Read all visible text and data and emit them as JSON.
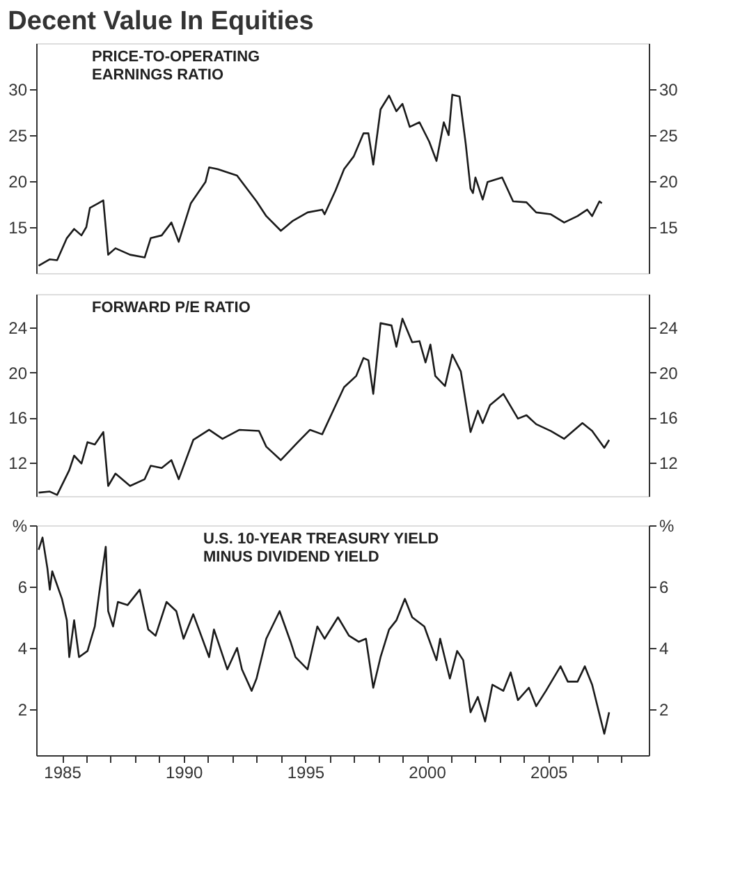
{
  "chart_data": [
    {
      "type": "line",
      "title": "Decent Value In Equities",
      "subtitle": "PRICE-TO-OPERATING\nEARNINGS RATIO",
      "xlim": [
        1983.94,
        2009.13
      ],
      "ylim": [
        10,
        35
      ],
      "yticks": [
        15,
        20,
        25,
        30
      ],
      "y2lim": [
        10,
        35
      ],
      "y2ticks": [
        15,
        20,
        25,
        30
      ],
      "tick_labels": "y",
      "series": [
        {
          "color": "#1a1a1a",
          "x": [
            1984.04,
            1984.5,
            1984.8,
            1985.2,
            1985.5,
            1985.8,
            1986.0,
            1986.15,
            1986.5,
            1986.7,
            1986.9,
            1987.2,
            1987.8,
            1988.4,
            1988.65,
            1989.1,
            1989.5,
            1989.8,
            1990.3,
            1990.9,
            1991.05,
            1991.4,
            1992.2,
            1993.0,
            1993.4,
            1994.0,
            1994.5,
            1995.1,
            1995.7,
            1995.8,
            1996.25,
            1996.6,
            1997.0,
            1997.4,
            1997.6,
            1997.8,
            1998.1,
            1998.45,
            1998.75,
            1999.0,
            1999.3,
            1999.7,
            2000.1,
            2000.4,
            2000.7,
            2000.9,
            2001.05,
            2001.35,
            2001.6,
            2001.8,
            2001.9,
            2002.0,
            2002.3,
            2002.5,
            2003.1,
            2003.55,
            2004.1,
            2004.5,
            2005.1,
            2005.65,
            2006.2,
            2006.6,
            2006.8,
            2007.1,
            2007.2
          ],
          "values": [
            10.8,
            11.5,
            11.4,
            13.8,
            14.8,
            14.1,
            15.0,
            17.1,
            17.6,
            17.9,
            12.0,
            12.7,
            12.0,
            11.7,
            13.8,
            14.1,
            15.5,
            13.4,
            17.6,
            19.9,
            21.5,
            21.3,
            20.6,
            17.8,
            16.2,
            14.6,
            15.7,
            16.6,
            16.9,
            16.4,
            19.0,
            21.3,
            22.7,
            25.2,
            25.2,
            21.8,
            27.8,
            29.3,
            27.6,
            28.4,
            25.9,
            26.4,
            24.3,
            22.2,
            26.4,
            25.0,
            29.4,
            29.2,
            24.1,
            19.2,
            18.7,
            20.4,
            18.0,
            19.9,
            20.4,
            17.8,
            17.7,
            16.6,
            16.4,
            15.5,
            16.2,
            16.9,
            16.2,
            17.8,
            17.6
          ]
        }
      ]
    },
    {
      "type": "line",
      "subtitle": "FORWARD P/E RATIO",
      "xlim": [
        1983.94,
        2009.13
      ],
      "ylim": [
        9,
        27
      ],
      "yticks": [
        12,
        16,
        20,
        24
      ],
      "y2lim": [
        9,
        27
      ],
      "y2ticks": [
        12,
        16,
        20,
        24
      ],
      "tick_labels": "y",
      "series": [
        {
          "color": "#1a1a1a",
          "x": [
            1984.04,
            1984.5,
            1984.8,
            1985.3,
            1985.5,
            1985.8,
            1986.05,
            1986.35,
            1986.7,
            1986.9,
            1987.2,
            1987.8,
            1988.4,
            1988.65,
            1989.1,
            1989.5,
            1989.8,
            1990.4,
            1991.05,
            1991.6,
            1992.3,
            1993.1,
            1993.4,
            1994.0,
            1994.7,
            1995.2,
            1995.7,
            1996.15,
            1996.6,
            1997.1,
            1997.4,
            1997.6,
            1997.8,
            1998.1,
            1998.55,
            1998.75,
            1999.0,
            1999.4,
            1999.7,
            1999.95,
            2000.15,
            2000.35,
            2000.75,
            2001.05,
            2001.4,
            2001.8,
            2002.1,
            2002.3,
            2002.6,
            2003.15,
            2003.75,
            2004.1,
            2004.5,
            2005.1,
            2005.65,
            2006.4,
            2006.8,
            2007.3,
            2007.5
          ],
          "values": [
            9.3,
            9.4,
            9.1,
            11.3,
            12.6,
            11.9,
            13.8,
            13.6,
            14.7,
            9.9,
            11.0,
            9.9,
            10.5,
            11.7,
            11.5,
            12.2,
            10.5,
            14.0,
            14.9,
            14.1,
            14.9,
            14.8,
            13.4,
            12.2,
            13.8,
            14.9,
            14.5,
            16.6,
            18.7,
            19.7,
            21.3,
            21.1,
            18.1,
            24.4,
            24.2,
            22.3,
            24.8,
            22.7,
            22.8,
            20.9,
            22.5,
            19.7,
            18.8,
            21.6,
            20.1,
            14.7,
            16.6,
            15.5,
            17.1,
            18.1,
            15.9,
            16.2,
            15.4,
            14.8,
            14.1,
            15.5,
            14.8,
            13.3,
            14.0
          ]
        }
      ]
    },
    {
      "type": "line",
      "subtitle": "U.S. 10-YEAR TREASURY YIELD\nMINUS DIVIDEND YIELD",
      "xlim": [
        1983.94,
        2009.13
      ],
      "xticks": [
        {
          "value": 1985,
          "label": "1985"
        },
        {
          "value": 1986,
          "label": null
        },
        {
          "value": 1987,
          "label": null
        },
        {
          "value": 1988,
          "label": null
        },
        {
          "value": 1989,
          "label": null
        },
        {
          "value": 1990,
          "label": "1990"
        },
        {
          "value": 1991,
          "label": null
        },
        {
          "value": 1992,
          "label": null
        },
        {
          "value": 1993,
          "label": null
        },
        {
          "value": 1994,
          "label": null
        },
        {
          "value": 1995,
          "label": "1995"
        },
        {
          "value": 1996,
          "label": null
        },
        {
          "value": 1997,
          "label": null
        },
        {
          "value": 1998,
          "label": null
        },
        {
          "value": 1999,
          "label": null
        },
        {
          "value": 2000,
          "label": "2000"
        },
        {
          "value": 2001,
          "label": null
        },
        {
          "value": 2002,
          "label": null
        },
        {
          "value": 2003,
          "label": null
        },
        {
          "value": 2004,
          "label": null
        },
        {
          "value": 2005,
          "label": "2005"
        },
        {
          "value": 2006,
          "label": null
        },
        {
          "value": 2007,
          "label": null
        },
        {
          "value": 2008,
          "label": null
        }
      ],
      "ylim": [
        0.5,
        8
      ],
      "yticks": [
        2,
        4,
        6,
        {
          "value": 8,
          "label": "%"
        }
      ],
      "y2lim": [
        0.5,
        8
      ],
      "y2ticks": [
        2,
        4,
        6,
        {
          "value": 8,
          "label": "%"
        }
      ],
      "series": [
        {
          "color": "#1a1a1a",
          "x": [
            1984.04,
            1984.2,
            1984.4,
            1984.5,
            1984.6,
            1985.0,
            1985.2,
            1985.3,
            1985.5,
            1985.7,
            1986.05,
            1986.35,
            1986.55,
            1986.8,
            1986.9,
            1987.1,
            1987.3,
            1987.7,
            1988.2,
            1988.55,
            1988.85,
            1989.3,
            1989.7,
            1990.0,
            1990.4,
            1991.05,
            1991.25,
            1991.8,
            1992.2,
            1992.4,
            1992.8,
            1993.0,
            1993.4,
            1993.95,
            1994.4,
            1994.6,
            1995.1,
            1995.5,
            1995.8,
            1996.35,
            1996.8,
            1997.2,
            1997.5,
            1997.8,
            1998.1,
            1998.45,
            1998.75,
            1999.1,
            1999.4,
            1999.9,
            2000.4,
            2000.55,
            2000.95,
            2001.25,
            2001.5,
            2001.8,
            2002.1,
            2002.4,
            2002.7,
            2003.15,
            2003.45,
            2003.75,
            2004.2,
            2004.5,
            2004.9,
            2005.5,
            2005.8,
            2006.2,
            2006.5,
            2006.8,
            2007.3,
            2007.5
          ],
          "values": [
            7.2,
            7.6,
            6.6,
            5.9,
            6.5,
            5.6,
            4.9,
            3.7,
            4.9,
            3.7,
            3.9,
            4.7,
            5.9,
            7.3,
            5.2,
            4.7,
            5.5,
            5.4,
            5.9,
            4.6,
            4.4,
            5.5,
            5.2,
            4.3,
            5.1,
            3.7,
            4.6,
            3.3,
            4.0,
            3.3,
            2.6,
            3.0,
            4.3,
            5.2,
            4.2,
            3.7,
            3.3,
            4.7,
            4.3,
            5.0,
            4.4,
            4.2,
            4.3,
            2.7,
            3.7,
            4.6,
            4.9,
            5.6,
            5.0,
            4.7,
            3.6,
            4.3,
            3.0,
            3.9,
            3.6,
            1.9,
            2.4,
            1.6,
            2.8,
            2.6,
            3.2,
            2.3,
            2.7,
            2.1,
            2.6,
            3.4,
            2.9,
            2.9,
            3.4,
            2.8,
            1.2,
            1.9
          ]
        }
      ]
    }
  ]
}
